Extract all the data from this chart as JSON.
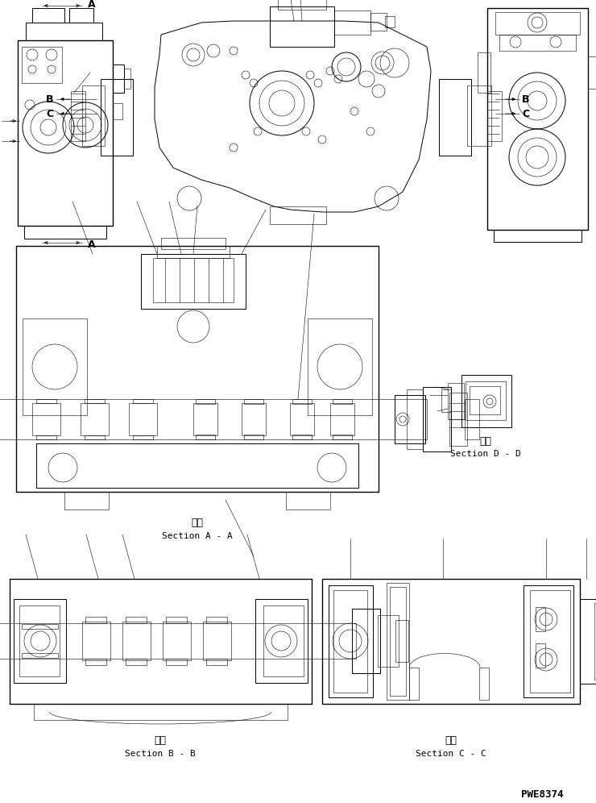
{
  "bg_color": "#ffffff",
  "line_color": "#000000",
  "fig_width": 7.4,
  "fig_height": 9.96,
  "dpi": 100,
  "watermark": "PWE8374",
  "labels": {
    "section_aa_jp": "断面",
    "section_aa_en": "Section A - A",
    "section_bb_jp": "断面",
    "section_bb_en": "Section B - B",
    "section_cc_jp": "断面",
    "section_cc_en": "Section C - C",
    "section_dd_jp": "断面",
    "section_dd_en": "Section D - D"
  }
}
